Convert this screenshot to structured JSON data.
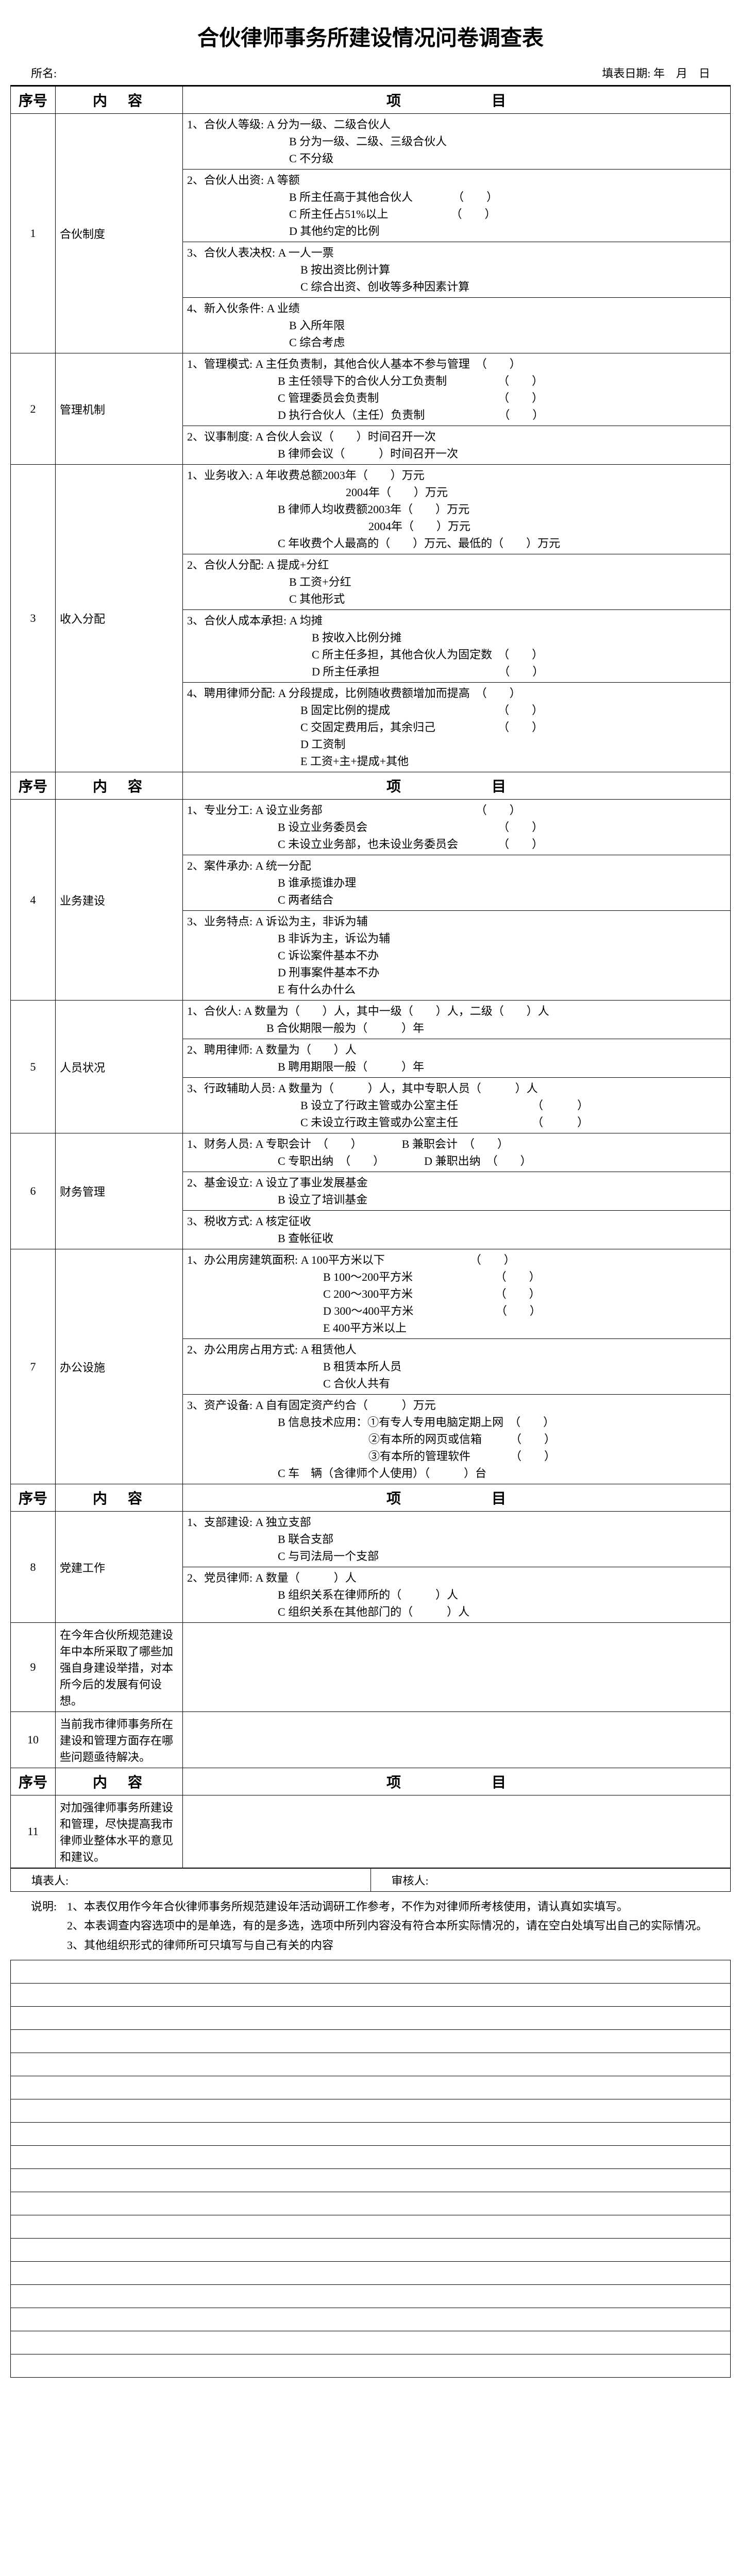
{
  "title": "合伙律师事务所建设情况问卷调查表",
  "meta": {
    "org_label": "所名:",
    "date_label": "填表日期:",
    "date_suffix": "年　月　日"
  },
  "headers": {
    "seq": "序号",
    "content": "内　容",
    "item": "项　　目"
  },
  "sections": [
    {
      "num": "1",
      "topic": "合伙制度",
      "items": [
        {
          "lead": "1、合伙人等级:",
          "opts": [
            "A 分为一级、二级合伙人",
            "B 分为一级、二级、三级合伙人",
            "C 不分级"
          ]
        },
        {
          "lead": "2、合伙人出资:",
          "opts": [
            "A 等额",
            "B 所主任高于其他合伙人　　　　（　　）",
            "C 所主任占51%以上　　　　　　（　　）",
            "D 其他约定的比例"
          ]
        },
        {
          "lead": "3、合伙人表决权:",
          "opts": [
            "A 一人一票",
            "B 按出资比例计算",
            "C 综合出资、创收等多种因素计算"
          ]
        },
        {
          "lead": "4、新入伙条件:",
          "opts": [
            "A 业绩",
            "B 入所年限",
            "C 综合考虑"
          ]
        }
      ]
    },
    {
      "num": "2",
      "topic": "管理机制",
      "items": [
        {
          "lead": "1、管理模式:",
          "opts": [
            "A 主任负责制，其他合伙人基本不参与管理　（　　）",
            "B 主任领导下的合伙人分工负责制　　　　　（　　）",
            "C 管理委员会负责制　　　　　　　　　　　（　　）",
            "D 执行合伙人（主任）负责制　　　　　　　（　　）"
          ]
        },
        {
          "lead": "2、议事制度:",
          "opts": [
            "A 合伙人会议（　　）时间召开一次",
            "B 律师会议（　　　）时间召开一次"
          ]
        }
      ]
    },
    {
      "num": "3",
      "topic": "收入分配",
      "items": [
        {
          "lead": "1、业务收入:",
          "opts": [
            "A 年收费总额2003年（　　）万元",
            "　　　　　　2004年（　　）万元",
            "B 律师人均收费额2003年（　　）万元",
            "　　　　　　　　2004年（　　）万元",
            "C 年收费个人最高的（　　）万元、最低的（　　）万元"
          ]
        },
        {
          "lead": "2、合伙人分配:",
          "opts": [
            "A 提成+分红",
            "B 工资+分红",
            "C 其他形式"
          ]
        },
        {
          "lead": "3、合伙人成本承担:",
          "opts": [
            "A 均摊",
            "B 按收入比例分摊",
            "C 所主任多担，其他合伙人为固定数　（　　）",
            "D 所主任承担　　　　　　　　　　　（　　）"
          ]
        },
        {
          "lead": "4、聘用律师分配:",
          "opts": [
            "A 分段提成，比例随收费额增加而提高　（　　）",
            "B 固定比例的提成　　　　　　　　　　（　　）",
            "C 交固定费用后，其余归己　　　　　　（　　）",
            "D 工资制",
            "E 工资+主+提成+其他"
          ]
        }
      ]
    }
  ],
  "sections2": [
    {
      "num": "4",
      "topic": "业务建设",
      "items": [
        {
          "lead": "1、专业分工:",
          "opts": [
            "A 设立业务部　　　　　　　　　　　　　　（　　）",
            "B 设立业务委员会　　　　　　　　　　　　（　　）",
            "C 未设立业务部，也未设业务委员会　　　　（　　）"
          ]
        },
        {
          "lead": "2、案件承办:",
          "opts": [
            "A 统一分配",
            "B 谁承揽谁办理",
            "C 两者结合"
          ]
        },
        {
          "lead": "3、业务特点:",
          "opts": [
            "A 诉讼为主，非诉为辅",
            "B 非诉为主，诉讼为辅",
            "C 诉讼案件基本不办",
            "D 刑事案件基本不办",
            "E 有什么办什么"
          ]
        }
      ]
    },
    {
      "num": "5",
      "topic": "人员状况",
      "items": [
        {
          "lead": "1、合伙人:",
          "opts": [
            "A 数量为（　　）人，其中一级（　　）人，二级（　　）人",
            "B 合伙期限一般为（　　　）年"
          ]
        },
        {
          "lead": "2、聘用律师:",
          "opts": [
            "A 数量为（　　）人",
            "B 聘用期限一般（　　　）年"
          ]
        },
        {
          "lead": "3、行政辅助人员:",
          "opts": [
            "A 数量为（　　　）人，其中专职人员（　　　）人",
            "B 设立了行政主管或办公室主任　　　　　　　（　　　）",
            "C 未设立行政主管或办公室主任　　　　　　　（　　　）"
          ]
        }
      ]
    },
    {
      "num": "6",
      "topic": "财务管理",
      "items": [
        {
          "lead": "1、财务人员:",
          "opts": [
            "A 专职会计　（　　）　　　　B 兼职会计　（　　）",
            "C 专职出纳　（　　）　　　　D 兼职出纳　（　　）"
          ]
        },
        {
          "lead": "2、基金设立:",
          "opts": [
            "A 设立了事业发展基金",
            "B 设立了培训基金"
          ]
        },
        {
          "lead": "3、税收方式:",
          "opts": [
            "A 核定征收",
            "B 查帐征收"
          ]
        }
      ]
    },
    {
      "num": "7",
      "topic": "办公设施",
      "items": [
        {
          "lead": "1、办公用房建筑面积:",
          "opts": [
            "A 100平方米以下　　　　　　　　（　　）",
            "B 100～200平方米　　　　　　　 （　　）",
            "C 200～300平方米　　　　　　　 （　　）",
            "D 300～400平方米　　　　　　　 （　　）",
            "E 400平方米以上"
          ]
        },
        {
          "lead": "2、办公用房占用方式:",
          "opts": [
            "A 租赁他人",
            "B 租赁本所人员",
            "C 合伙人共有"
          ]
        },
        {
          "lead": "3、资产设备:",
          "opts": [
            "A 自有固定资产约合（　　　）万元",
            "B 信息技术应用：①有专人专用电脑定期上网　（　　）",
            "　　　　　　　　②有本所的网页或信箱　　　（　　）",
            "　　　　　　　　③有本所的管理软件　　　　（　　）",
            "C 车　辆（含律师个人使用）（　　　）台"
          ]
        }
      ]
    }
  ],
  "sections3": [
    {
      "num": "8",
      "topic": "党建工作",
      "items": [
        {
          "lead": "1、支部建设:",
          "opts": [
            "A 独立支部",
            "B 联合支部",
            "C 与司法局一个支部"
          ]
        },
        {
          "lead": "2、党员律师:",
          "opts": [
            "A 数量（　　　）人",
            "B 组织关系在律师所的（　　　）人",
            "C 组织关系在其他部门的（　　　）人"
          ]
        }
      ]
    },
    {
      "num": "9",
      "topic": "在今年合伙所规范建设年中本所采取了哪些加强自身建设举措，对本所今后的发展有何设想。",
      "items": [
        {
          "lead": "",
          "opts": [
            "　",
            "　",
            "　"
          ]
        }
      ]
    },
    {
      "num": "10",
      "topic": "当前我市律师事务所在建设和管理方面存在哪些问题亟待解决。",
      "items": [
        {
          "lead": "",
          "opts": [
            "　",
            "　",
            "　"
          ]
        }
      ]
    }
  ],
  "sections4": [
    {
      "num": "11",
      "topic": "对加强律师事务所建设和管理，尽快提高我市律师业整体水平的意见和建议。",
      "items": [
        {
          "lead": "",
          "opts": [
            "　",
            "　",
            "　",
            "　"
          ]
        }
      ]
    }
  ],
  "filler": {
    "left": "填表人:",
    "right": "审核人:"
  },
  "notes": {
    "label": "说明:",
    "lines": [
      "1、本表仅用作今年合伙律师事务所规范建设年活动调研工作参考，不作为对律师所考核使用，请认真如实填写。",
      "2、本表调查内容选项中的是单选，有的是多选，选项中所列内容没有符合本所实际情况的，请在空白处填写出自己的实际情况。",
      "3、其他组织形式的律师所可只填写与自己有关的内容"
    ]
  },
  "blank_rows": 18
}
